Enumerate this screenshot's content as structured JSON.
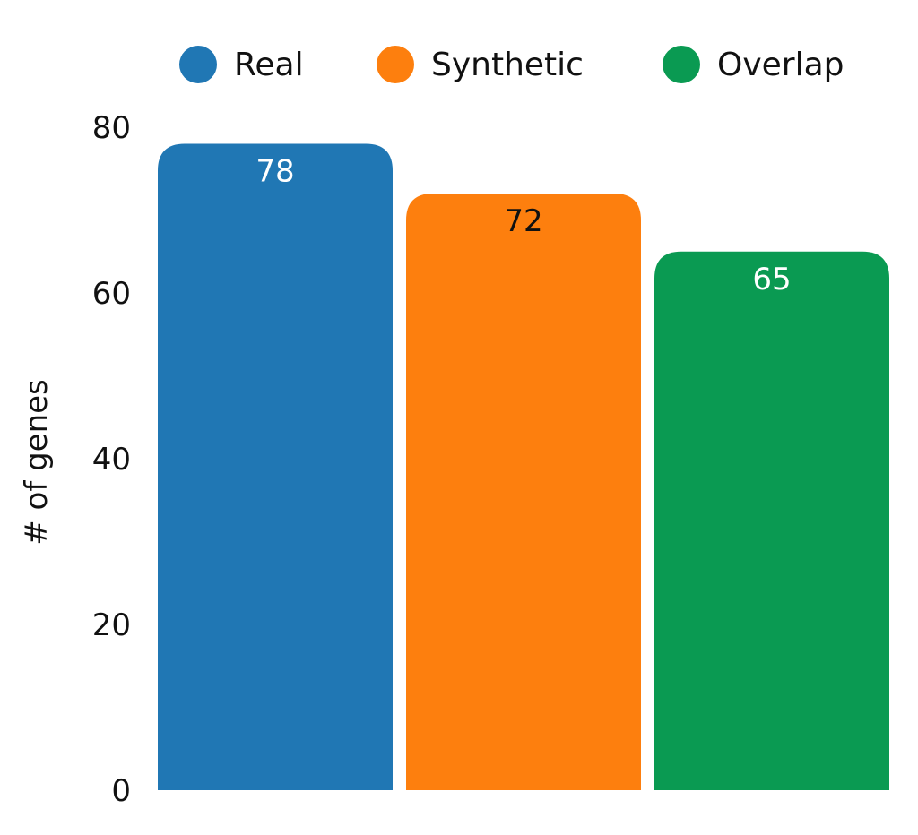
{
  "chart_data": {
    "type": "bar",
    "categories": [
      "Real",
      "Synthetic",
      "Overlap"
    ],
    "values": [
      78,
      72,
      65
    ],
    "colors": [
      "#2077b4",
      "#fd7f0e",
      "#0a9a52"
    ],
    "label_colors": [
      "#ffffff",
      "#111111",
      "#ffffff"
    ],
    "ylabel": "# of genes",
    "xlabel": "",
    "title": "",
    "ylim": [
      0,
      80
    ],
    "yticks": [
      0,
      20,
      40,
      60,
      80
    ],
    "legend": {
      "position": "top",
      "entries": [
        "Real",
        "Synthetic",
        "Overlap"
      ]
    },
    "grid": false
  }
}
